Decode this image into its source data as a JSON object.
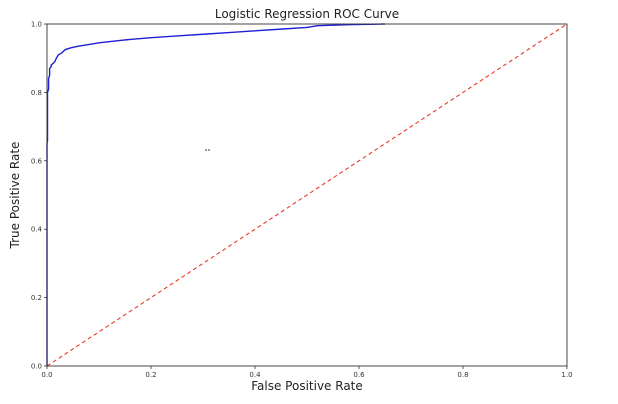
{
  "chart_data": {
    "type": "line",
    "title": "Logistic Regression ROC Curve",
    "xlabel": "False Positive Rate",
    "ylabel": "True Positive Rate",
    "xlim": [
      0.0,
      1.0
    ],
    "ylim": [
      0.0,
      1.0
    ],
    "xticks": [
      "0.0",
      "0.2",
      "0.4",
      "0.6",
      "0.8",
      "1.0"
    ],
    "yticks": [
      "0.0",
      "0.2",
      "0.4",
      "0.6",
      "0.8",
      "1.0"
    ],
    "grid": false,
    "series": [
      {
        "color": "#1f1fd6",
        "style": "solid",
        "x": [
          0.0,
          0.0,
          0.001,
          0.001,
          0.003,
          0.003,
          0.005,
          0.005,
          0.008,
          0.008,
          0.012,
          0.015,
          0.018,
          0.022,
          0.028,
          0.035,
          0.045,
          0.06,
          0.08,
          0.1,
          0.13,
          0.16,
          0.2,
          0.25,
          0.3,
          0.35,
          0.4,
          0.45,
          0.5,
          0.52,
          0.58,
          0.65
        ],
        "y": [
          0.0,
          0.65,
          0.66,
          0.8,
          0.81,
          0.84,
          0.85,
          0.87,
          0.875,
          0.88,
          0.885,
          0.89,
          0.9,
          0.91,
          0.915,
          0.925,
          0.93,
          0.935,
          0.94,
          0.945,
          0.95,
          0.955,
          0.96,
          0.965,
          0.97,
          0.975,
          0.98,
          0.985,
          0.99,
          0.995,
          0.998,
          1.0
        ]
      },
      {
        "color": "#e83a2a",
        "style": "dashed",
        "x": [
          0.0,
          1.0
        ],
        "y": [
          0.0,
          1.0
        ]
      }
    ]
  }
}
